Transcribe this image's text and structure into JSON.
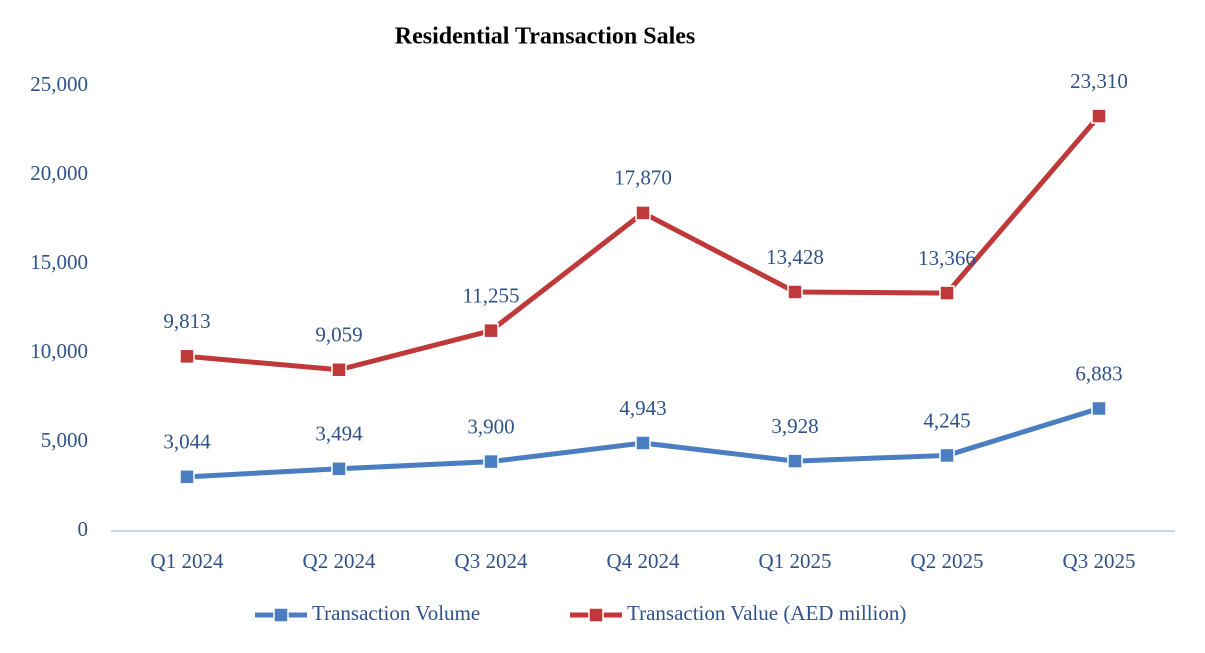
{
  "chart_data": {
    "type": "line",
    "title": "Residential Transaction Sales",
    "categories": [
      "Q1 2024",
      "Q2 2024",
      "Q3 2024",
      "Q4 2024",
      "Q1 2025",
      "Q2 2025",
      "Q3 2025"
    ],
    "series": [
      {
        "name": "Transaction Volume",
        "color": "#4a7ec0",
        "values": [
          3044,
          3494,
          3900,
          4943,
          3928,
          4245,
          6883
        ],
        "value_labels": [
          "3,044",
          "3,494",
          "3,900",
          "4,943",
          "3,928",
          "4,245",
          "6,883"
        ]
      },
      {
        "name": "Transaction Value (AED million)",
        "color": "#c0393a",
        "values": [
          9813,
          9059,
          11255,
          17870,
          13428,
          13366,
          23310
        ],
        "value_labels": [
          "9,813",
          "9,059",
          "11,255",
          "17,870",
          "13,428",
          "13,366",
          "23,310"
        ]
      }
    ],
    "ylim": [
      0,
      25000
    ],
    "yticks": [
      0,
      {
        "value": 5000,
        "label": "5,000"
      },
      {
        "value": 10000,
        "label": "10,000"
      },
      {
        "value": 15000,
        "label": "15,000"
      },
      {
        "value": 20000,
        "label": "20,000"
      },
      {
        "value": 25000,
        "label": "25,000"
      }
    ],
    "grid": false,
    "legend": "bottom"
  }
}
